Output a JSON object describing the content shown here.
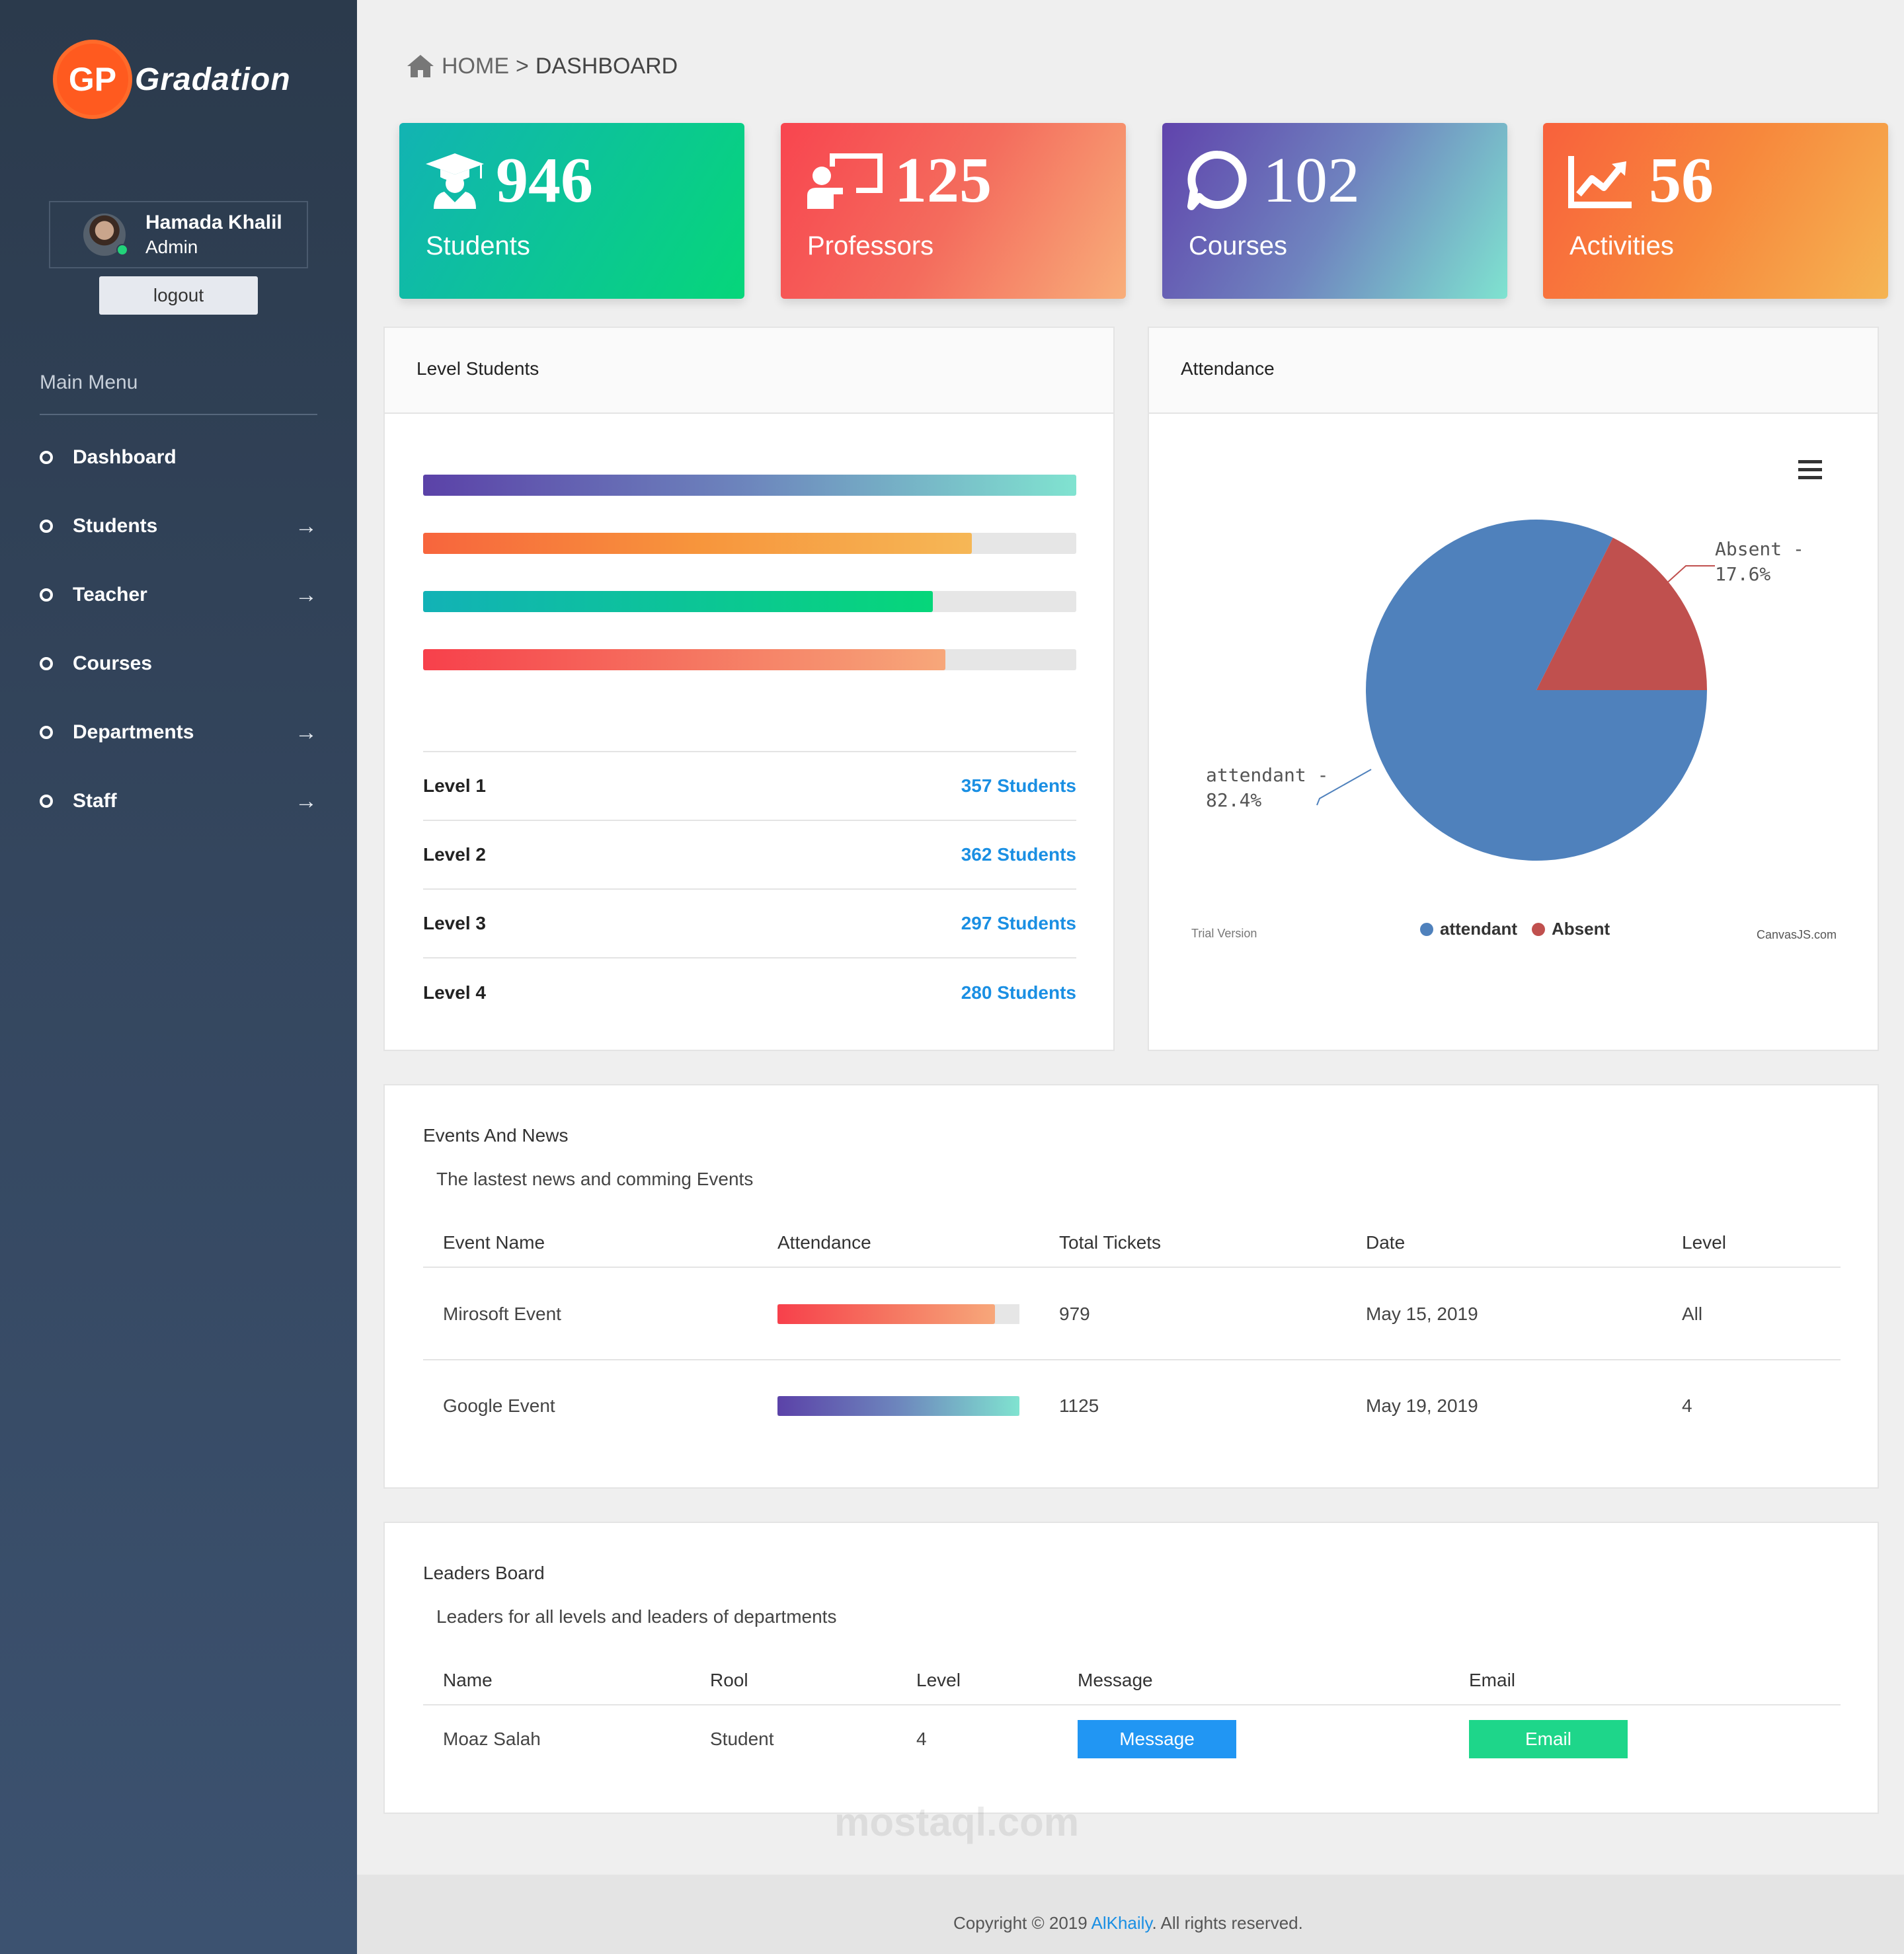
{
  "app": {
    "logo_badge": "GP",
    "logo_text": "Gradation"
  },
  "user": {
    "name": "Hamada Khalil",
    "role": "Admin",
    "logout_label": "logout"
  },
  "menu": {
    "title": "Main Menu",
    "items": [
      {
        "label": "Dashboard",
        "has_arrow": false
      },
      {
        "label": "Students",
        "has_arrow": true
      },
      {
        "label": "Teacher",
        "has_arrow": true
      },
      {
        "label": "Courses",
        "has_arrow": false
      },
      {
        "label": "Departments",
        "has_arrow": true
      },
      {
        "label": "Staff",
        "has_arrow": true
      }
    ],
    "arrow_icon": "→"
  },
  "breadcrumb": {
    "home": "HOME",
    "separator": ">",
    "current": "DASHBOARD"
  },
  "stats": [
    {
      "value": "946",
      "label": "Students",
      "icon": "graduate-icon"
    },
    {
      "value": "125",
      "label": "Professors",
      "icon": "teacher-board-icon"
    },
    {
      "value": "102",
      "label": "Courses",
      "icon": "chat-bubble-icon"
    },
    {
      "value": "56",
      "label": "Activities",
      "icon": "line-chart-icon"
    }
  ],
  "level_students": {
    "title": "Level Students",
    "progress": [
      1.0,
      0.84,
      0.78,
      0.8
    ],
    "levels": [
      {
        "name": "Level 1",
        "count": "357 Students"
      },
      {
        "name": "Level 2",
        "count": "362 Students"
      },
      {
        "name": "Level 3",
        "count": "297 Students"
      },
      {
        "name": "Level 4",
        "count": "280 Students"
      }
    ]
  },
  "attendance": {
    "title": "Attendance",
    "trial": "Trial Version",
    "credit": "CanvasJS.com",
    "colors": {
      "attendant": "#4f81bc",
      "absent": "#c0504e"
    }
  },
  "chart_data": {
    "type": "pie",
    "series": [
      {
        "label": "attendant",
        "value": 82.4,
        "display": "attendant - 82.4%"
      },
      {
        "label": "Absent",
        "value": 17.6,
        "display": "Absent - 17.6%"
      }
    ],
    "legend": [
      "attendant",
      "Absent"
    ]
  },
  "events": {
    "title": "Events And News",
    "subtitle": "The lastest news and comming Events",
    "columns": [
      "Event Name",
      "Attendance",
      "Total Tickets",
      "Date",
      "Level"
    ],
    "rows": [
      {
        "name": "Mirosoft Event",
        "attendance": 0.9,
        "tickets": "979",
        "date": "May 15, 2019",
        "level": "All"
      },
      {
        "name": "Google Event",
        "attendance": 1.0,
        "tickets": "1125",
        "date": "May 19, 2019",
        "level": "4"
      }
    ]
  },
  "leaders": {
    "title": "Leaders Board",
    "subtitle": "Leaders for all levels and leaders of departments",
    "columns": [
      "Name",
      "Rool",
      "Level",
      "Message",
      "Email"
    ],
    "rows": [
      {
        "name": "Moaz Salah",
        "role": "Student",
        "level": "4",
        "message_btn": "Message",
        "email_btn": "Email"
      }
    ]
  },
  "footer": {
    "prefix": "Copyright © 2019 ",
    "link": "AlKhaily",
    "suffix": ". All rights reserved."
  },
  "watermark": "mostaql.com"
}
